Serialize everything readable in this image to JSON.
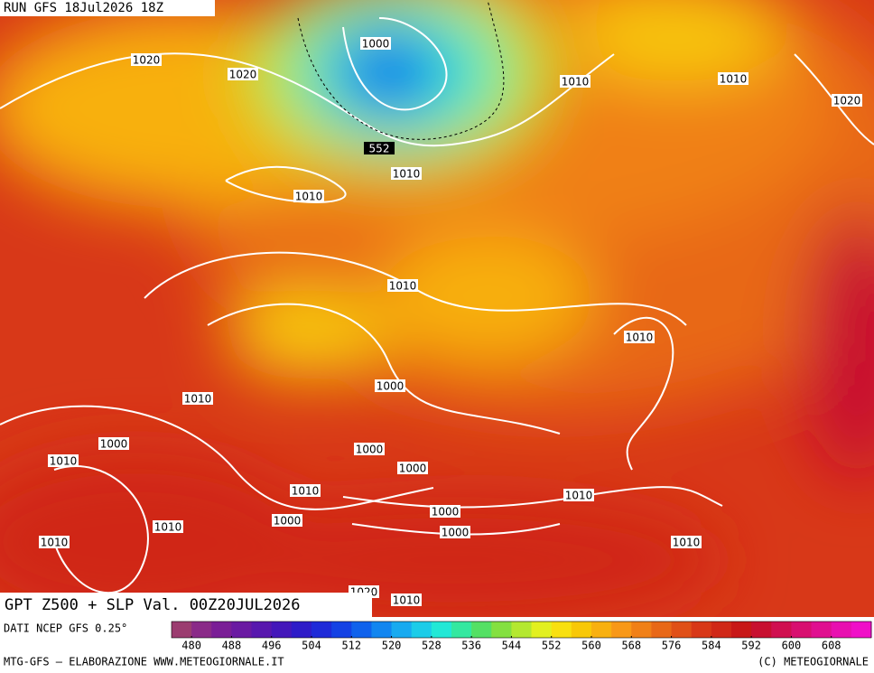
{
  "header": {
    "run": "RUN GFS 18Jul2026 18Z"
  },
  "map": {
    "title": "GPT Z500 + SLP Val. 00Z20JUL2026",
    "isobar_labels": [
      "1020",
      "1020",
      "1000",
      "552",
      "1010",
      "1010",
      "1010",
      "1010",
      "1020",
      "1010",
      "1010",
      "1000",
      "1010",
      "1000",
      "1010",
      "1000",
      "1000",
      "1010",
      "1010",
      "1000",
      "1000",
      "1010",
      "1000",
      "1020",
      "1010",
      "1010",
      "1010"
    ]
  },
  "colorbar": {
    "source": "DATI NCEP GFS 0.25°",
    "ticks": [
      480,
      488,
      496,
      504,
      512,
      520,
      528,
      536,
      544,
      552,
      560,
      568,
      576,
      584,
      592,
      600,
      608
    ],
    "colors": [
      "#9b3d70",
      "#8a2a88",
      "#7a1e96",
      "#6a1aa2",
      "#5818ae",
      "#4418ba",
      "#2e1cc8",
      "#1e2ad8",
      "#1442e4",
      "#1062ec",
      "#1286f0",
      "#18aaf0",
      "#1ccce8",
      "#22e8d6",
      "#34e8a0",
      "#54e064",
      "#84e040",
      "#b4e830",
      "#e2f020",
      "#f8e010",
      "#f8c808",
      "#f8b010",
      "#f89818",
      "#f08018",
      "#e86818",
      "#e05018",
      "#d83818",
      "#d02818",
      "#c81818",
      "#c81030",
      "#d01050",
      "#d81070",
      "#e01090",
      "#e810b0",
      "#f010c8"
    ]
  },
  "footer": {
    "credit": "MTG-GFS — ELABORAZIONE WWW.METEOGIORNALE.IT",
    "copyright": "(C) METEOGIORNALE"
  }
}
